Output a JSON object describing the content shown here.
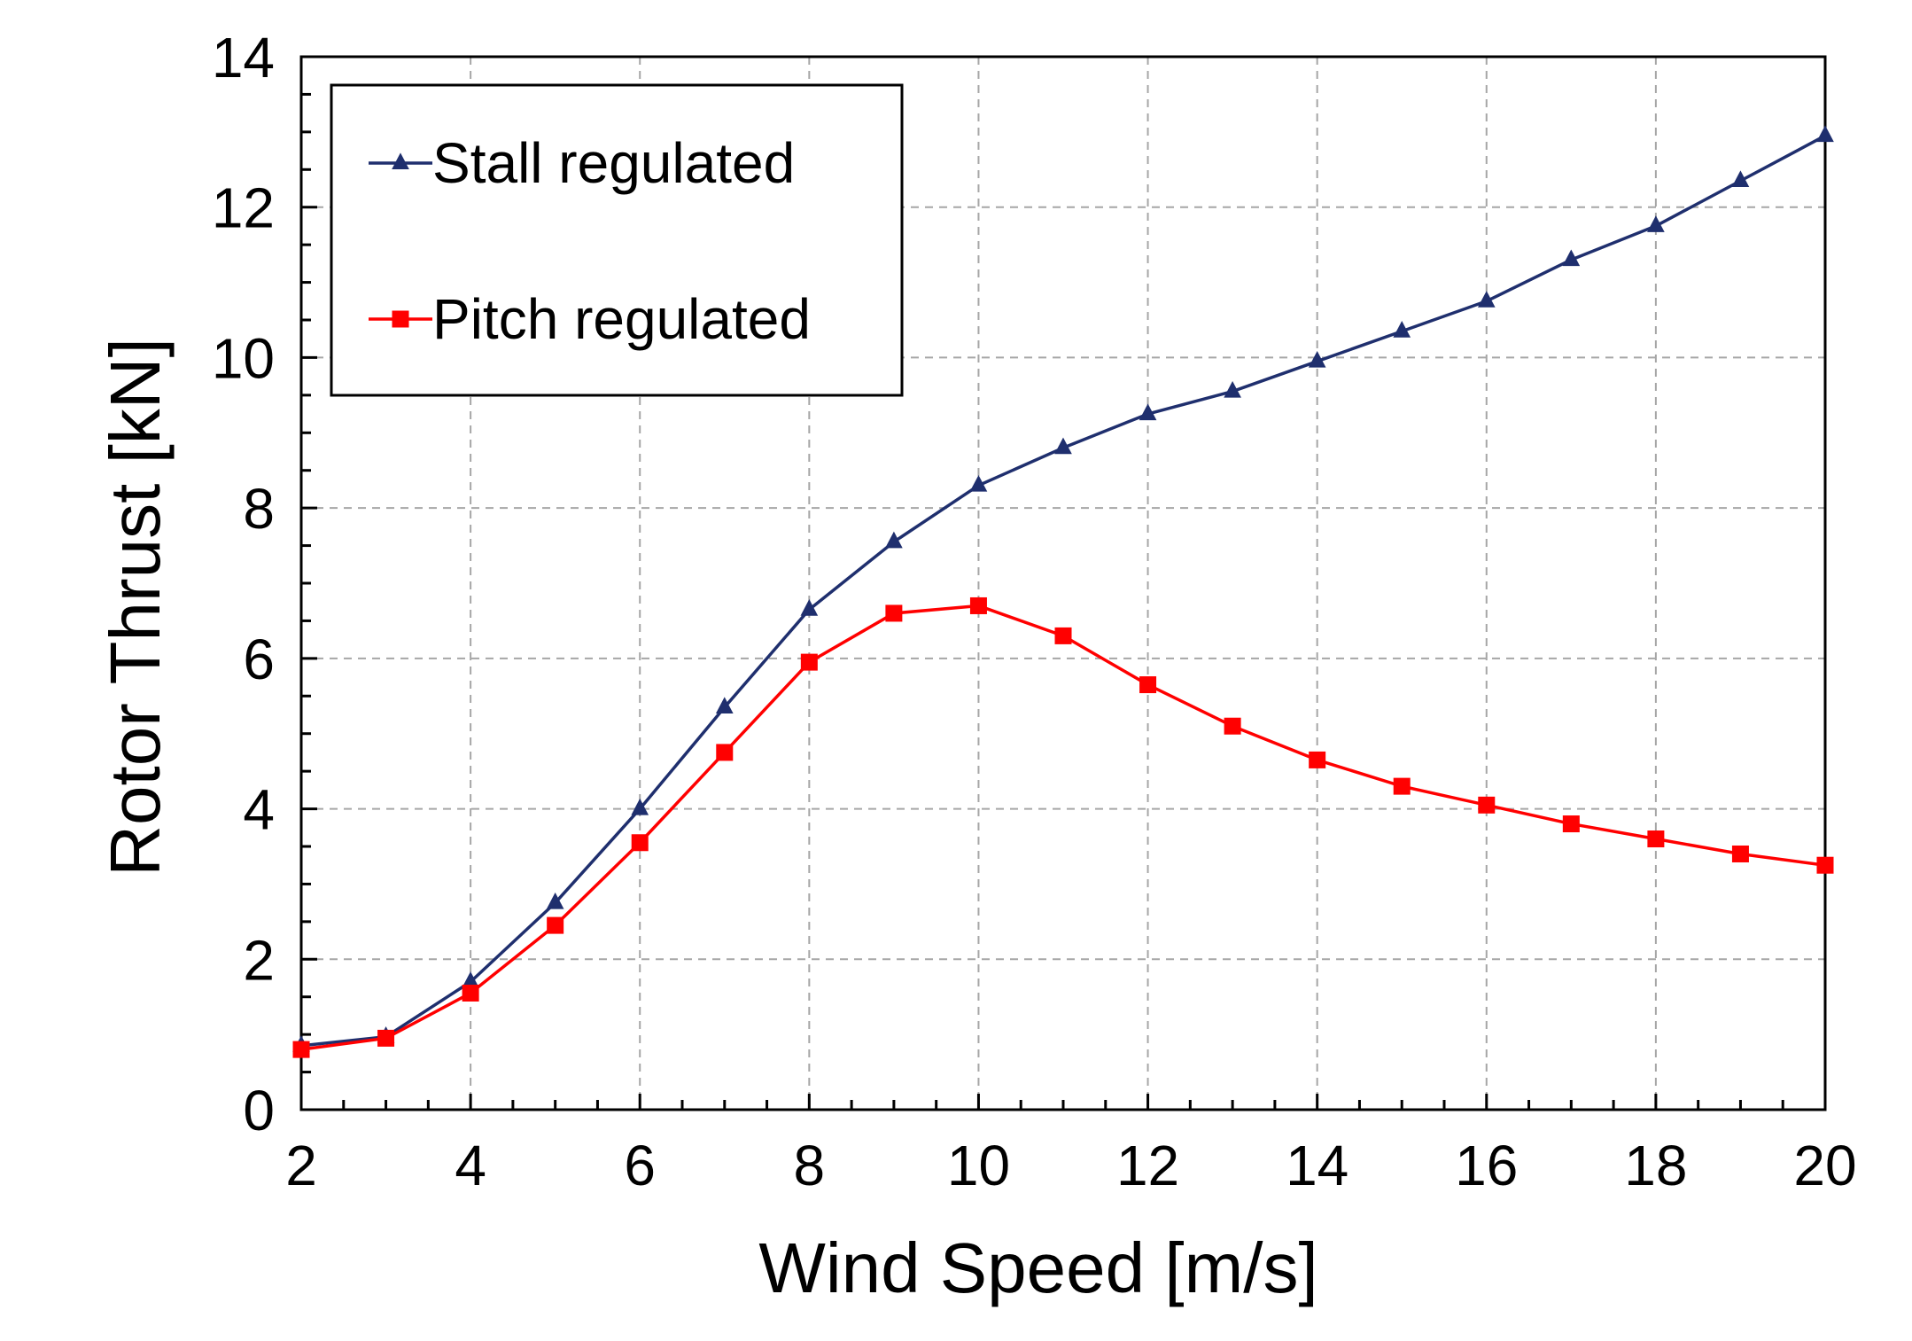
{
  "chart_data": {
    "type": "line",
    "title": "",
    "xlabel": "Wind Speed [m/s]",
    "ylabel": "Rotor Thrust [kN]",
    "xlim": [
      2,
      20
    ],
    "ylim": [
      0,
      14
    ],
    "xticks": [
      2,
      4,
      6,
      8,
      10,
      12,
      14,
      16,
      18,
      20
    ],
    "yticks": [
      0,
      2,
      4,
      6,
      8,
      10,
      12,
      14
    ],
    "x_minor_step": 0.5,
    "y_minor_step": 0.5,
    "grid": true,
    "legend_position": "top-left",
    "series": [
      {
        "name": "Stall regulated",
        "color": "#1f2f6e",
        "marker": "triangle",
        "x": [
          2,
          3,
          4,
          5,
          6,
          7,
          8,
          9,
          10,
          11,
          12,
          13,
          14,
          15,
          16,
          17,
          18,
          19,
          20
        ],
        "values": [
          0.85,
          0.97,
          1.7,
          2.75,
          4.0,
          5.35,
          6.65,
          7.55,
          8.3,
          8.8,
          9.25,
          9.55,
          9.95,
          10.35,
          10.75,
          11.3,
          11.75,
          12.35,
          12.95
        ]
      },
      {
        "name": "Pitch regulated",
        "color": "#ff0000",
        "marker": "square",
        "x": [
          2,
          3,
          4,
          5,
          6,
          7,
          8,
          9,
          10,
          11,
          12,
          13,
          14,
          15,
          16,
          17,
          18,
          19,
          20
        ],
        "values": [
          0.8,
          0.95,
          1.55,
          2.45,
          3.55,
          4.75,
          5.95,
          6.6,
          6.7,
          6.3,
          5.65,
          5.1,
          4.65,
          4.3,
          4.05,
          3.8,
          3.6,
          3.4,
          3.25
        ]
      }
    ]
  }
}
